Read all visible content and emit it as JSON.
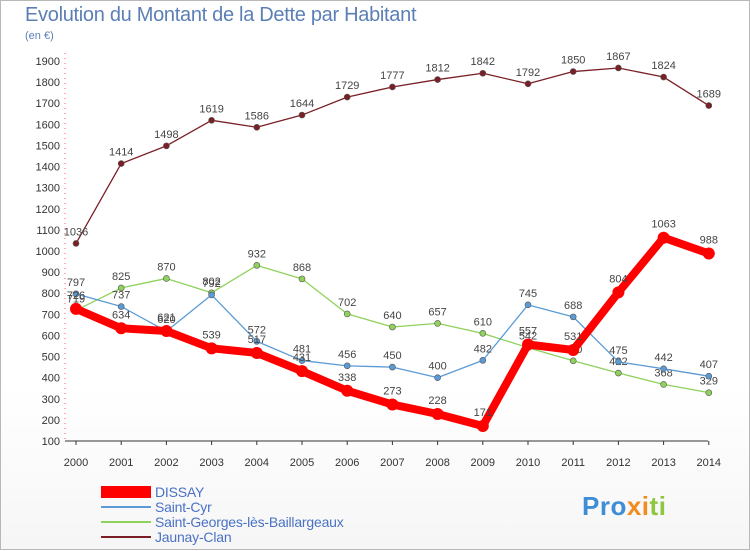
{
  "chart_data": {
    "type": "line",
    "title": "Evolution du Montant de la Dette par Habitant",
    "subtitle": "(en €)",
    "x": [
      "2000",
      "2001",
      "2002",
      "2003",
      "2004",
      "2005",
      "2006",
      "2007",
      "2008",
      "2009",
      "2010",
      "2011",
      "2012",
      "2013",
      "2014"
    ],
    "ylim": [
      100,
      1900
    ],
    "yticks": [
      100,
      200,
      300,
      400,
      500,
      600,
      700,
      800,
      900,
      1000,
      1100,
      1200,
      1300,
      1400,
      1500,
      1600,
      1700,
      1800,
      1900
    ],
    "grid": false,
    "legend_position": "bottom-left",
    "series": [
      {
        "name": "Jaunay-Clan",
        "color": "#7a1f26",
        "style": "thin",
        "values": [
          1036,
          1414,
          1498,
          1619,
          1586,
          1644,
          1729,
          1777,
          1812,
          1842,
          1792,
          1850,
          1867,
          1824,
          1689
        ],
        "labels": [
          "1036",
          "1414",
          "1498",
          "1619",
          "1586",
          "1644",
          "1729",
          "1777",
          "1812",
          "1842",
          "1792",
          "1850",
          "1867",
          "1824",
          "1689"
        ]
      },
      {
        "name": "Saint-Georges-lès-Baillargeaux",
        "color": "#8fd15c",
        "style": "thin",
        "values": [
          719,
          825,
          870,
          802,
          932,
          868,
          702,
          640,
          657,
          610,
          542,
          480,
          422,
          368,
          329
        ],
        "labels": [
          "719",
          "825",
          "870",
          "802",
          "932",
          "868",
          "702",
          "640",
          "657",
          "610",
          "542",
          "480",
          "422",
          "368",
          "329"
        ]
      },
      {
        "name": "Saint-Cyr",
        "color": "#5b9bd5",
        "style": "thin",
        "values": [
          797,
          737,
          620,
          792,
          572,
          481,
          456,
          450,
          400,
          482,
          745,
          688,
          475,
          442,
          407
        ],
        "labels": [
          "797",
          "737",
          "620",
          "792",
          "572",
          "481",
          "456",
          "450",
          "400",
          "482",
          "745",
          "688",
          "475",
          "442",
          "407"
        ]
      },
      {
        "name": "DISSAY",
        "color": "#ff0000",
        "style": "thick",
        "values": [
          726,
          634,
          621,
          539,
          517,
          431,
          338,
          273,
          228,
          171,
          557,
          531,
          804,
          1063,
          988
        ],
        "labels": [
          "726",
          "634",
          "621",
          "539",
          "517",
          "431",
          "338",
          "273",
          "228",
          "171",
          "557",
          "531",
          "804",
          "1063",
          "988"
        ]
      }
    ]
  },
  "legend": {
    "items": [
      {
        "name": "DISSAY",
        "color": "#ff0000"
      },
      {
        "name": "Saint-Cyr",
        "color": "#5b9bd5"
      },
      {
        "name": "Saint-Georges-lès-Baillargeaux",
        "color": "#8fd15c"
      },
      {
        "name": "Jaunay-Clan",
        "color": "#7a1f26"
      }
    ]
  },
  "branding": {
    "logo_text": "Proxiti",
    "part1": "Pro",
    "part2": "xi",
    "part3": "ti"
  }
}
